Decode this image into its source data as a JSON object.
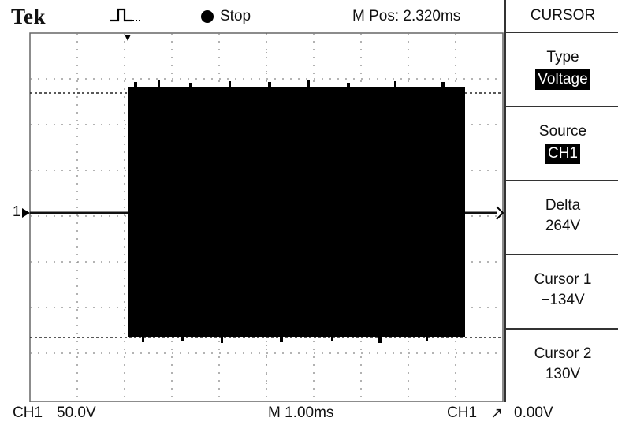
{
  "header": {
    "brand": "Tek",
    "run_state": "Stop",
    "horizontal_position": "M Pos: 2.320ms"
  },
  "menu": {
    "title": "CURSOR",
    "items": [
      {
        "label": "Type",
        "value": "Voltage",
        "highlighted": true
      },
      {
        "label": "Source",
        "value": "CH1",
        "highlighted": true
      },
      {
        "label": "Delta",
        "value": "264V",
        "highlighted": false
      },
      {
        "label": "Cursor 1",
        "value": "−134V",
        "highlighted": false
      },
      {
        "label": "Cursor 2",
        "value": "130V",
        "highlighted": false
      }
    ]
  },
  "status_bar": {
    "channel": "CH1",
    "volts_per_div": "50.0V",
    "time_per_div": "M 1.00ms",
    "trigger_source": "CH1",
    "trigger_slope": "↗",
    "trigger_level": "0.00V"
  },
  "screen": {
    "channel_marker": "1",
    "waveform_color": "#000000",
    "grid_color": "#888888"
  }
}
